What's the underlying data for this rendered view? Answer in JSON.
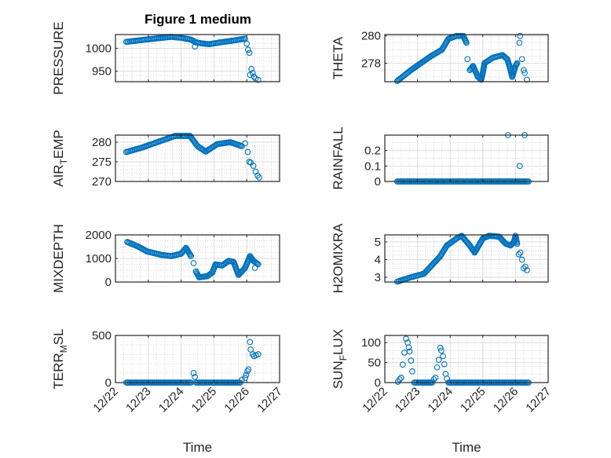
{
  "title": "Figure 1 medium",
  "xlabel": "Time",
  "x_tick_labels": [
    "12/22",
    "12/23",
    "12/24",
    "12/25",
    "12/26",
    "12/27"
  ],
  "colors": {
    "marker": "#0072BD",
    "axis": "#262626",
    "grid_major": "#dcdcdc",
    "grid_minor": "#c8c8c8"
  },
  "chart_data": [
    {
      "type": "scatter",
      "ylabel": "PRESSURE",
      "xlim": [
        0,
        5
      ],
      "ylim": [
        927,
        1030
      ],
      "yticks": [
        950,
        1000
      ],
      "segments": [
        [
          [
            0.33,
            1014
          ],
          [
            0.8,
            1018
          ],
          [
            1.3,
            1022
          ],
          [
            1.7,
            1025
          ],
          [
            2.0,
            1023
          ],
          [
            2.3,
            1019
          ],
          [
            2.45,
            1013
          ],
          [
            2.6,
            1011
          ],
          [
            2.85,
            1009
          ],
          [
            3.2,
            1013
          ],
          [
            3.6,
            1017
          ],
          [
            3.95,
            1021
          ]
        ]
      ],
      "points": [
        [
          2.42,
          1004
        ],
        [
          4.0,
          1010
        ],
        [
          4.04,
          997
        ],
        [
          4.08,
          990
        ],
        [
          4.1,
          942
        ],
        [
          4.14,
          955
        ],
        [
          4.18,
          946
        ],
        [
          4.22,
          938
        ],
        [
          4.27,
          934
        ],
        [
          4.35,
          931
        ]
      ]
    },
    {
      "type": "scatter",
      "ylabel": "THETA",
      "xlim": [
        0,
        5
      ],
      "ylim": [
        276.65,
        280.1
      ],
      "yticks": [
        278,
        280
      ],
      "segments": [
        [
          [
            0.38,
            276.7
          ],
          [
            0.8,
            277.5
          ],
          [
            1.1,
            278
          ],
          [
            1.4,
            278.5
          ],
          [
            1.75,
            279
          ],
          [
            1.95,
            279.8
          ],
          [
            2.2,
            280
          ],
          [
            2.4,
            280
          ],
          [
            2.5,
            279.5
          ]
        ],
        [
          [
            2.6,
            277.5
          ],
          [
            2.7,
            277.8
          ],
          [
            2.85,
            277
          ],
          [
            2.95,
            276.8
          ],
          [
            3.0,
            277.3
          ],
          [
            3.05,
            278
          ],
          [
            3.3,
            278.4
          ],
          [
            3.6,
            278.6
          ],
          [
            3.75,
            278.3
          ],
          [
            3.85,
            277.5
          ],
          [
            3.9,
            277
          ],
          [
            4.0,
            277.8
          ],
          [
            4.05,
            278
          ]
        ]
      ],
      "points": [
        [
          2.53,
          278.3
        ],
        [
          4.12,
          279.5
        ],
        [
          4.14,
          280
        ],
        [
          4.2,
          278.3
        ],
        [
          4.25,
          277.5
        ],
        [
          4.28,
          277.3
        ],
        [
          4.35,
          276.8
        ]
      ]
    },
    {
      "type": "scatter",
      "ylabel": "AIR_TEMP",
      "xlim": [
        0,
        5
      ],
      "ylim": [
        270,
        281.8
      ],
      "yticks": [
        270,
        275,
        280
      ],
      "segments": [
        [
          [
            0.33,
            277.5
          ],
          [
            0.8,
            278.6
          ],
          [
            1.34,
            280.2
          ],
          [
            1.82,
            281.6
          ],
          [
            2.27,
            281.6
          ],
          [
            2.5,
            279
          ],
          [
            2.75,
            277.6
          ],
          [
            3.1,
            279.5
          ],
          [
            3.5,
            280
          ],
          [
            3.85,
            279
          ]
        ]
      ],
      "points": [
        [
          3.95,
          279.7
        ],
        [
          4.03,
          277.5
        ],
        [
          4.08,
          275
        ],
        [
          4.12,
          274.8
        ],
        [
          4.2,
          274
        ],
        [
          4.27,
          272.5
        ],
        [
          4.33,
          271.5
        ],
        [
          4.38,
          271
        ]
      ]
    },
    {
      "type": "scatter",
      "ylabel": "RAINFALL",
      "xlim": [
        0,
        5
      ],
      "ylim": [
        0,
        0.3
      ],
      "yticks": [
        0,
        0.1,
        0.2
      ],
      "segments": [
        [
          [
            0.38,
            0
          ],
          [
            4.4,
            0
          ]
        ]
      ],
      "points": [
        [
          3.77,
          0.3
        ],
        [
          4.13,
          0.1
        ],
        [
          4.28,
          0.3
        ]
      ]
    },
    {
      "type": "scatter",
      "ylabel": "MIXDEPTH",
      "xlim": [
        0,
        5
      ],
      "ylim": [
        0,
        2000
      ],
      "yticks": [
        0,
        1000,
        2000
      ],
      "segments": [
        [
          [
            0.36,
            1700
          ],
          [
            0.7,
            1500
          ],
          [
            0.96,
            1300
          ],
          [
            1.4,
            1150
          ],
          [
            1.7,
            1100
          ],
          [
            2.0,
            1200
          ],
          [
            2.15,
            1450
          ],
          [
            2.3,
            1100
          ]
        ],
        [
          [
            2.45,
            450
          ],
          [
            2.55,
            200
          ],
          [
            2.8,
            250
          ],
          [
            2.95,
            400
          ],
          [
            3.05,
            750
          ],
          [
            3.25,
            700
          ],
          [
            3.45,
            900
          ],
          [
            3.6,
            850
          ],
          [
            3.75,
            300
          ],
          [
            3.95,
            600
          ],
          [
            4.1,
            1100
          ],
          [
            4.2,
            900
          ],
          [
            4.35,
            750
          ]
        ]
      ],
      "points": [
        [
          2.38,
          800
        ],
        [
          4.25,
          600
        ]
      ]
    },
    {
      "type": "scatter",
      "ylabel": "H2OMIXRA",
      "xlim": [
        0,
        5
      ],
      "ylim": [
        2.73,
        5.4
      ],
      "yticks": [
        3,
        4,
        5
      ],
      "segments": [
        [
          [
            0.38,
            2.75
          ],
          [
            0.8,
            3.0
          ],
          [
            1.2,
            3.2
          ],
          [
            1.4,
            3.6
          ],
          [
            1.7,
            4.2
          ],
          [
            1.9,
            4.8
          ],
          [
            2.2,
            5.2
          ],
          [
            2.35,
            5.35
          ],
          [
            2.6,
            4.8
          ],
          [
            2.75,
            4.4
          ],
          [
            3.0,
            5.2
          ],
          [
            3.2,
            5.35
          ],
          [
            3.5,
            5.3
          ],
          [
            3.7,
            4.9
          ],
          [
            3.85,
            4.8
          ],
          [
            3.95,
            5.0
          ],
          [
            4.0,
            5.35
          ],
          [
            4.05,
            4.9
          ]
        ]
      ],
      "points": [
        [
          4.1,
          4.3
        ],
        [
          4.15,
          4.4
        ],
        [
          4.2,
          4.0
        ],
        [
          4.25,
          3.5
        ],
        [
          4.3,
          3.6
        ],
        [
          4.35,
          3.4
        ]
      ]
    },
    {
      "type": "scatter",
      "ylabel": "TERR_MSL",
      "xlim": [
        0,
        5
      ],
      "ylim": [
        0,
        500
      ],
      "yticks": [
        0,
        500
      ],
      "segments": [
        [
          [
            0.33,
            0
          ],
          [
            2.3,
            0
          ]
        ],
        [
          [
            2.45,
            0
          ],
          [
            3.8,
            0
          ]
        ]
      ],
      "points": [
        [
          2.38,
          100
        ],
        [
          2.42,
          60
        ],
        [
          3.85,
          30
        ],
        [
          3.95,
          50
        ],
        [
          3.98,
          80
        ],
        [
          4.02,
          120
        ],
        [
          4.05,
          140
        ],
        [
          4.1,
          430
        ],
        [
          4.12,
          350
        ],
        [
          4.18,
          300
        ],
        [
          4.22,
          280
        ],
        [
          4.28,
          290
        ],
        [
          4.35,
          300
        ]
      ]
    },
    {
      "type": "scatter",
      "ylabel": "SUN_FLUX",
      "xlim": [
        0,
        5
      ],
      "ylim": [
        0,
        118
      ],
      "yticks": [
        0,
        50,
        100
      ],
      "segments": [
        [
          [
            0.9,
            0
          ],
          [
            1.45,
            0
          ]
        ],
        [
          [
            1.95,
            0
          ],
          [
            4.4,
            0
          ]
        ]
      ],
      "points": [
        [
          0.4,
          2
        ],
        [
          0.45,
          8
        ],
        [
          0.5,
          12
        ],
        [
          0.55,
          45
        ],
        [
          0.6,
          75
        ],
        [
          0.65,
          110
        ],
        [
          0.7,
          100
        ],
        [
          0.73,
          88
        ],
        [
          0.76,
          78
        ],
        [
          0.8,
          55
        ],
        [
          0.84,
          28
        ],
        [
          1.5,
          8
        ],
        [
          1.55,
          12
        ],
        [
          1.6,
          38
        ],
        [
          1.65,
          57
        ],
        [
          1.7,
          87
        ],
        [
          1.73,
          80
        ],
        [
          1.78,
          66
        ],
        [
          1.82,
          46
        ],
        [
          1.86,
          22
        ],
        [
          1.9,
          10
        ]
      ]
    }
  ]
}
